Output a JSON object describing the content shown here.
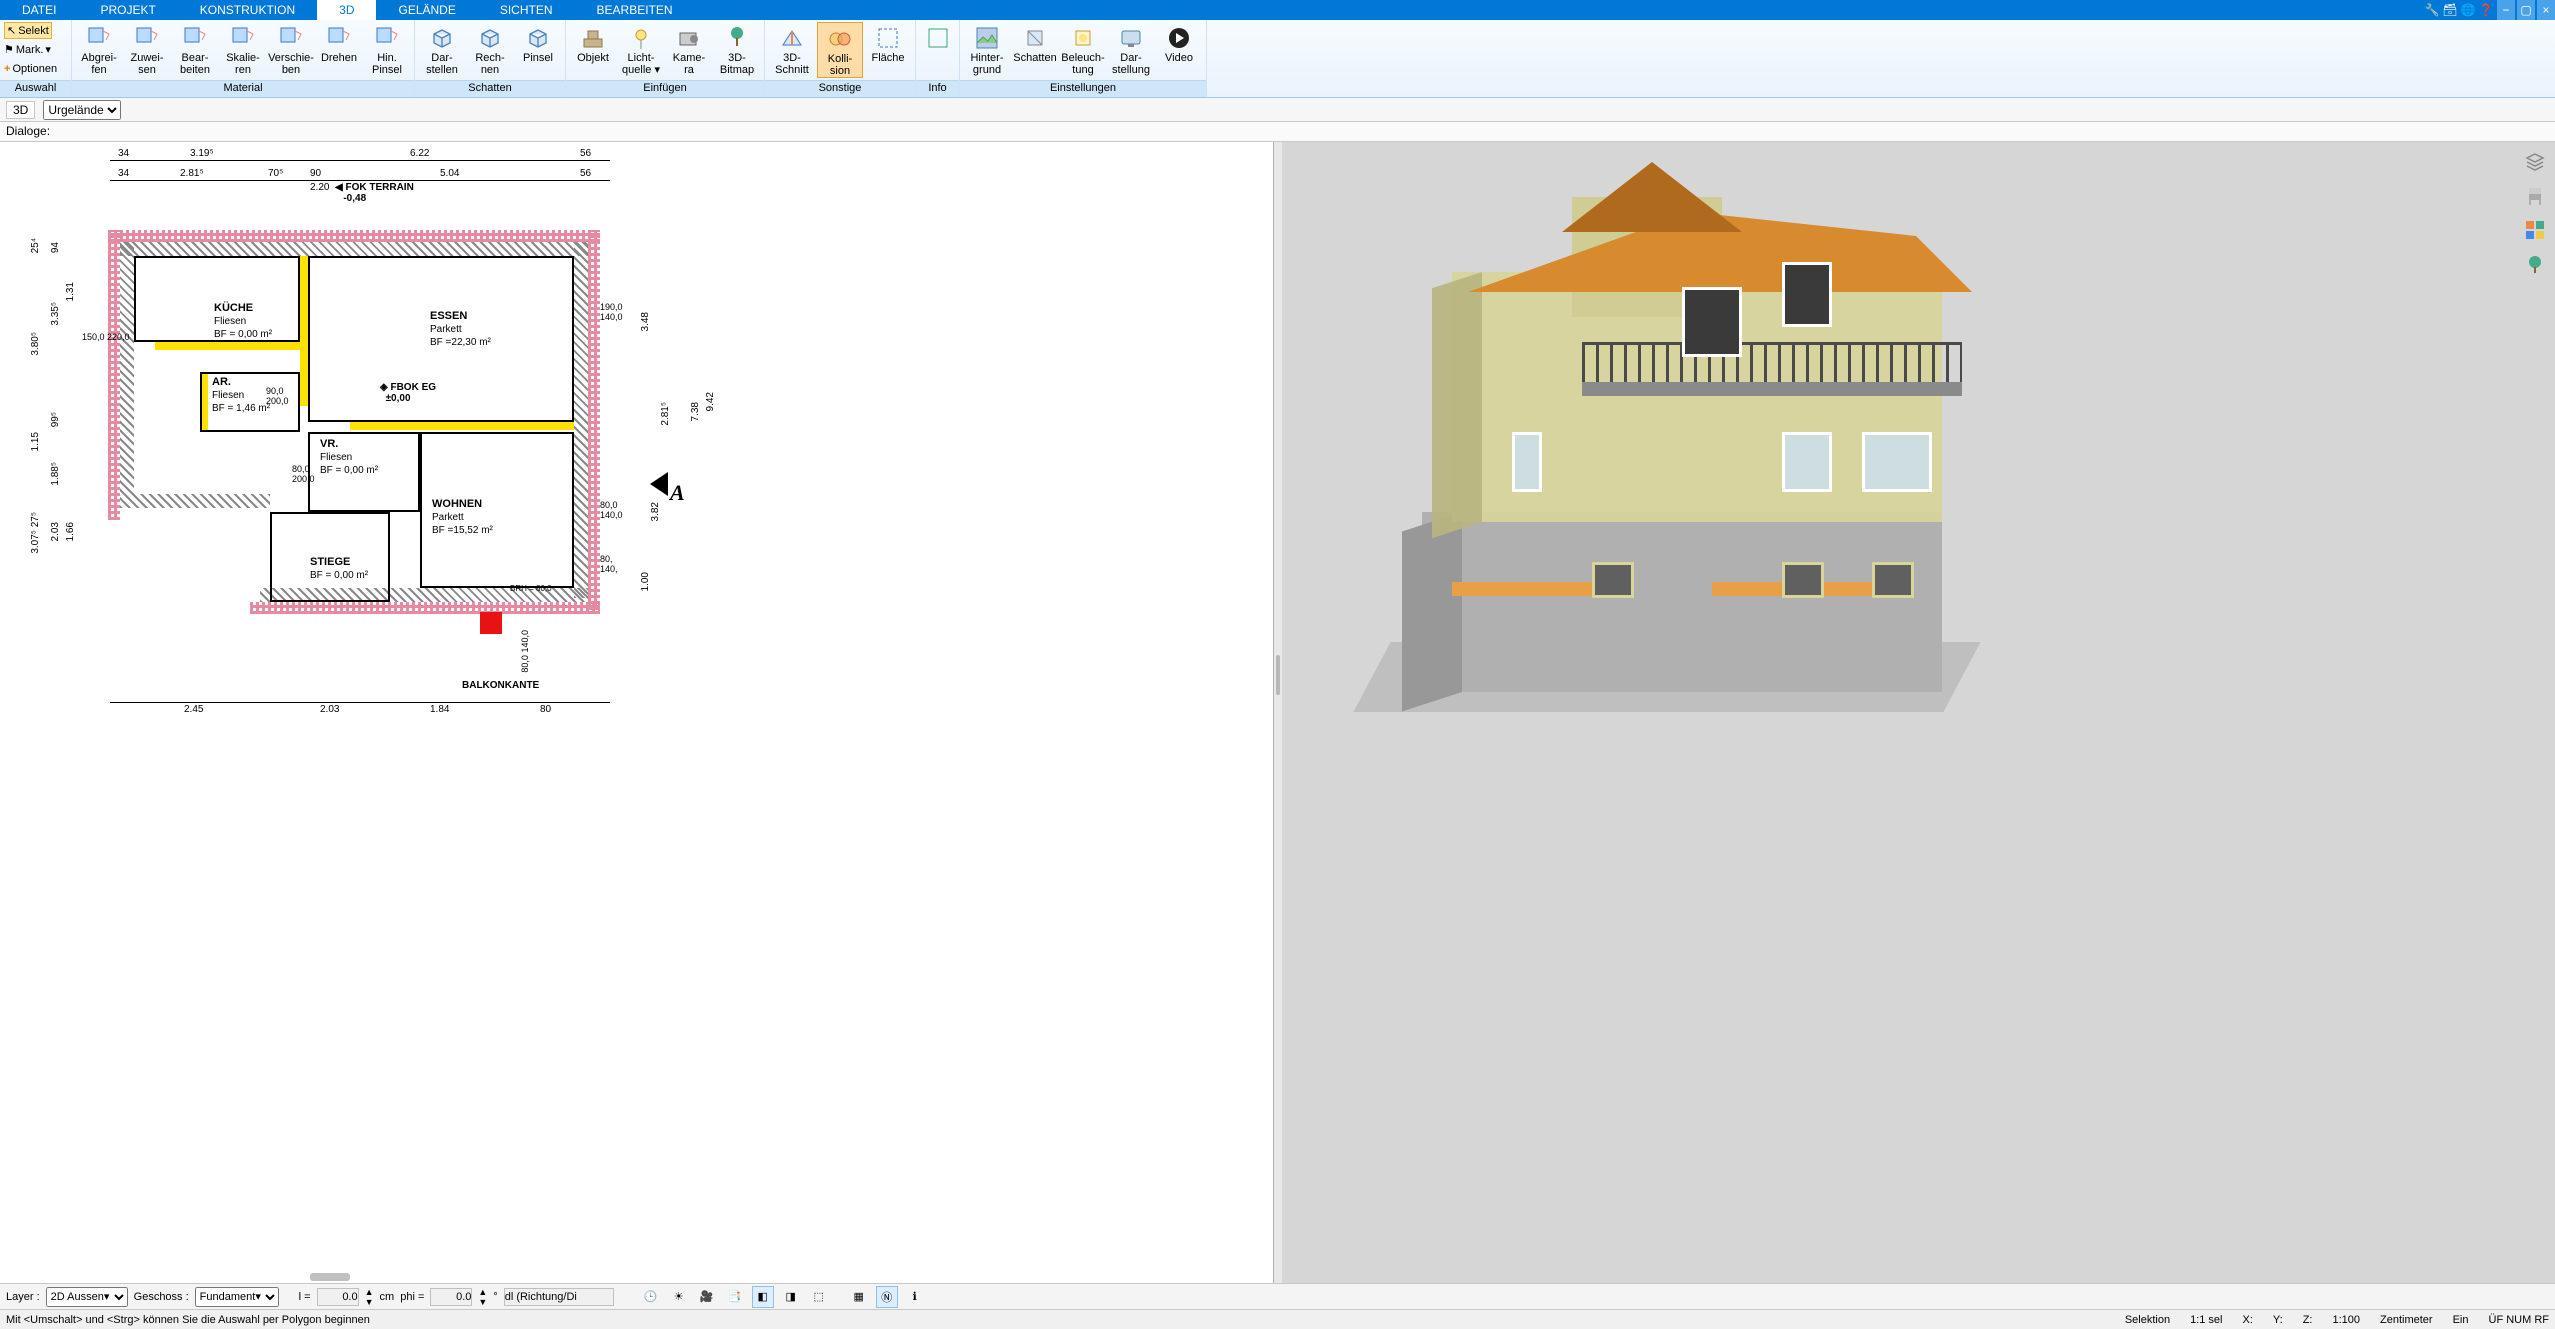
{
  "tabs": {
    "items": [
      "DATEI",
      "PROJEKT",
      "KONSTRUKTION",
      "3D",
      "GELÄNDE",
      "SICHTEN",
      "BEARBEITEN"
    ],
    "active_index": 3
  },
  "ribbon": {
    "auswahl": {
      "selekt": "Selekt",
      "mark": "Mark.",
      "optionen": "Optionen",
      "caption": "Auswahl"
    },
    "material": {
      "caption": "Material",
      "buttons": [
        {
          "l1": "Abgrei-",
          "l2": "fen"
        },
        {
          "l1": "Zuwei-",
          "l2": "sen"
        },
        {
          "l1": "Bear-",
          "l2": "beiten"
        },
        {
          "l1": "Skalie-",
          "l2": "ren"
        },
        {
          "l1": "Verschie-",
          "l2": "ben"
        },
        {
          "l1": "Drehen",
          "l2": ""
        },
        {
          "l1": "Hin.",
          "l2": "Pinsel"
        }
      ]
    },
    "schatten": {
      "caption": "Schatten",
      "buttons": [
        {
          "l1": "Dar-",
          "l2": "stellen"
        },
        {
          "l1": "Rech-",
          "l2": "nen"
        },
        {
          "l1": "Pinsel",
          "l2": ""
        }
      ]
    },
    "einfuegen": {
      "caption": "Einfügen",
      "buttons": [
        {
          "l1": "Objekt",
          "l2": ""
        },
        {
          "l1": "Licht-",
          "l2": "quelle ▾"
        },
        {
          "l1": "Kame-",
          "l2": "ra"
        },
        {
          "l1": "3D-",
          "l2": "Bitmap"
        }
      ]
    },
    "sonstige": {
      "caption": "Sonstige",
      "buttons": [
        {
          "l1": "3D-",
          "l2": "Schnitt"
        },
        {
          "l1": "Kolli-",
          "l2": "sion",
          "active": true
        },
        {
          "l1": "Fläche",
          "l2": ""
        }
      ]
    },
    "info": {
      "caption": "Info"
    },
    "einstellungen": {
      "caption": "Einstellungen",
      "buttons": [
        {
          "l1": "Hinter-",
          "l2": "grund"
        },
        {
          "l1": "Schatten",
          "l2": ""
        },
        {
          "l1": "Beleuch-",
          "l2": "tung"
        },
        {
          "l1": "Dar-",
          "l2": "stellung"
        },
        {
          "l1": "Video",
          "l2": ""
        }
      ]
    }
  },
  "bar3d": {
    "label": "3D",
    "dropdown": "Urgelände"
  },
  "bardlg": {
    "label": "Dialoge:"
  },
  "plan": {
    "rooms": {
      "kueche": {
        "name": "KÜCHE",
        "floor": "Fliesen",
        "bf": "BF = 0,00 m²"
      },
      "essen": {
        "name": "ESSEN",
        "floor": "Parkett",
        "bf": "BF =22,30 m²"
      },
      "ar": {
        "name": "AR.",
        "floor": "Fliesen",
        "bf": "BF = 1,46 m²"
      },
      "vr": {
        "name": "VR.",
        "floor": "Fliesen",
        "bf": "BF = 0,00 m²"
      },
      "wohnen": {
        "name": "WOHNEN",
        "floor": "Parkett",
        "bf": "BF =15,52 m²"
      },
      "stiege": {
        "name": "STIEGE",
        "floor": "",
        "bf": "BF = 0,00 m²"
      }
    },
    "callouts": {
      "fok_terrain": {
        "t": "FOK TERRAIN",
        "v": "-0,48"
      },
      "fbok_eg": {
        "t": "FBOK EG",
        "v": "±0,00"
      }
    },
    "balkon": "BALKONKANTE",
    "top_dims": [
      "34",
      "3.19⁵",
      "6.22",
      "56"
    ],
    "top_dims2": [
      "34",
      "2.81⁵",
      "70⁵",
      "90",
      "5.04",
      "56"
    ],
    "top_dims2b": "2.20",
    "left_dims": [
      "25⁴",
      "3.80⁵",
      "1.15",
      "3.07⁵   27⁵",
      "25⁴"
    ],
    "left_dims2": [
      "94",
      "3.35⁵",
      "1.31",
      "150,0\n220,0",
      "99⁵",
      "1.88⁵",
      "2.03",
      "1.66"
    ],
    "bottom_dims": [
      "2.45",
      "2.03",
      "1.84",
      "80"
    ],
    "right_dims": [
      "3.48",
      "2.81⁵",
      "7.38",
      "9.42",
      "3.82",
      "1.00"
    ],
    "door_dims": [
      {
        "a": "190,0",
        "b": "140,0"
      },
      {
        "a": "80,0",
        "b": "140,0"
      },
      {
        "a": "80,",
        "b": "140,"
      },
      {
        "a": "80,0",
        "b": "140,0"
      },
      {
        "a": "90,0",
        "b": "200,0"
      },
      {
        "a": "80,0",
        "b": "200,0"
      }
    ],
    "brh": "BRH = 80,0",
    "section_marker": "A",
    "colors": {
      "wall": "#000000",
      "hatch": "#8a8a8a",
      "highlight": "#ffe100",
      "insulation": "#e58aa0",
      "marker": "#e81212"
    }
  },
  "view3d": {
    "bg": "#d6d6d6",
    "roof": "#d88a2e",
    "roof_shadow": "#b06a1e",
    "wall": "#d8d49a",
    "wall_shadow": "#b8b480",
    "glass": "#c8e4e8",
    "concrete": "#b0b0b0",
    "balcony": "#4a4a4a",
    "orange_floor": "#e8a048"
  },
  "bottom": {
    "layer_label": "Layer :",
    "layer_value": "2D Aussen▾",
    "geschoss_label": "Geschoss :",
    "geschoss_value": "Fundament▾",
    "l_label": "l =",
    "l_value": "0.0",
    "l_unit": "cm",
    "phi_label": "phi =",
    "phi_value": "0.0",
    "phi_unit": "°",
    "dl": "dl (Richtung/Di"
  },
  "status": {
    "hint": "Mit <Umschalt> und <Strg> können Sie die Auswahl per Polygon beginnen",
    "selektion": "Selektion",
    "ratio": "1:1 sel",
    "x": "X:",
    "y": "Y:",
    "z": "Z:",
    "scale": "1:100",
    "unit": "Zentimeter",
    "ein": "Ein",
    "flags": "ÜF  NUM  RF"
  }
}
